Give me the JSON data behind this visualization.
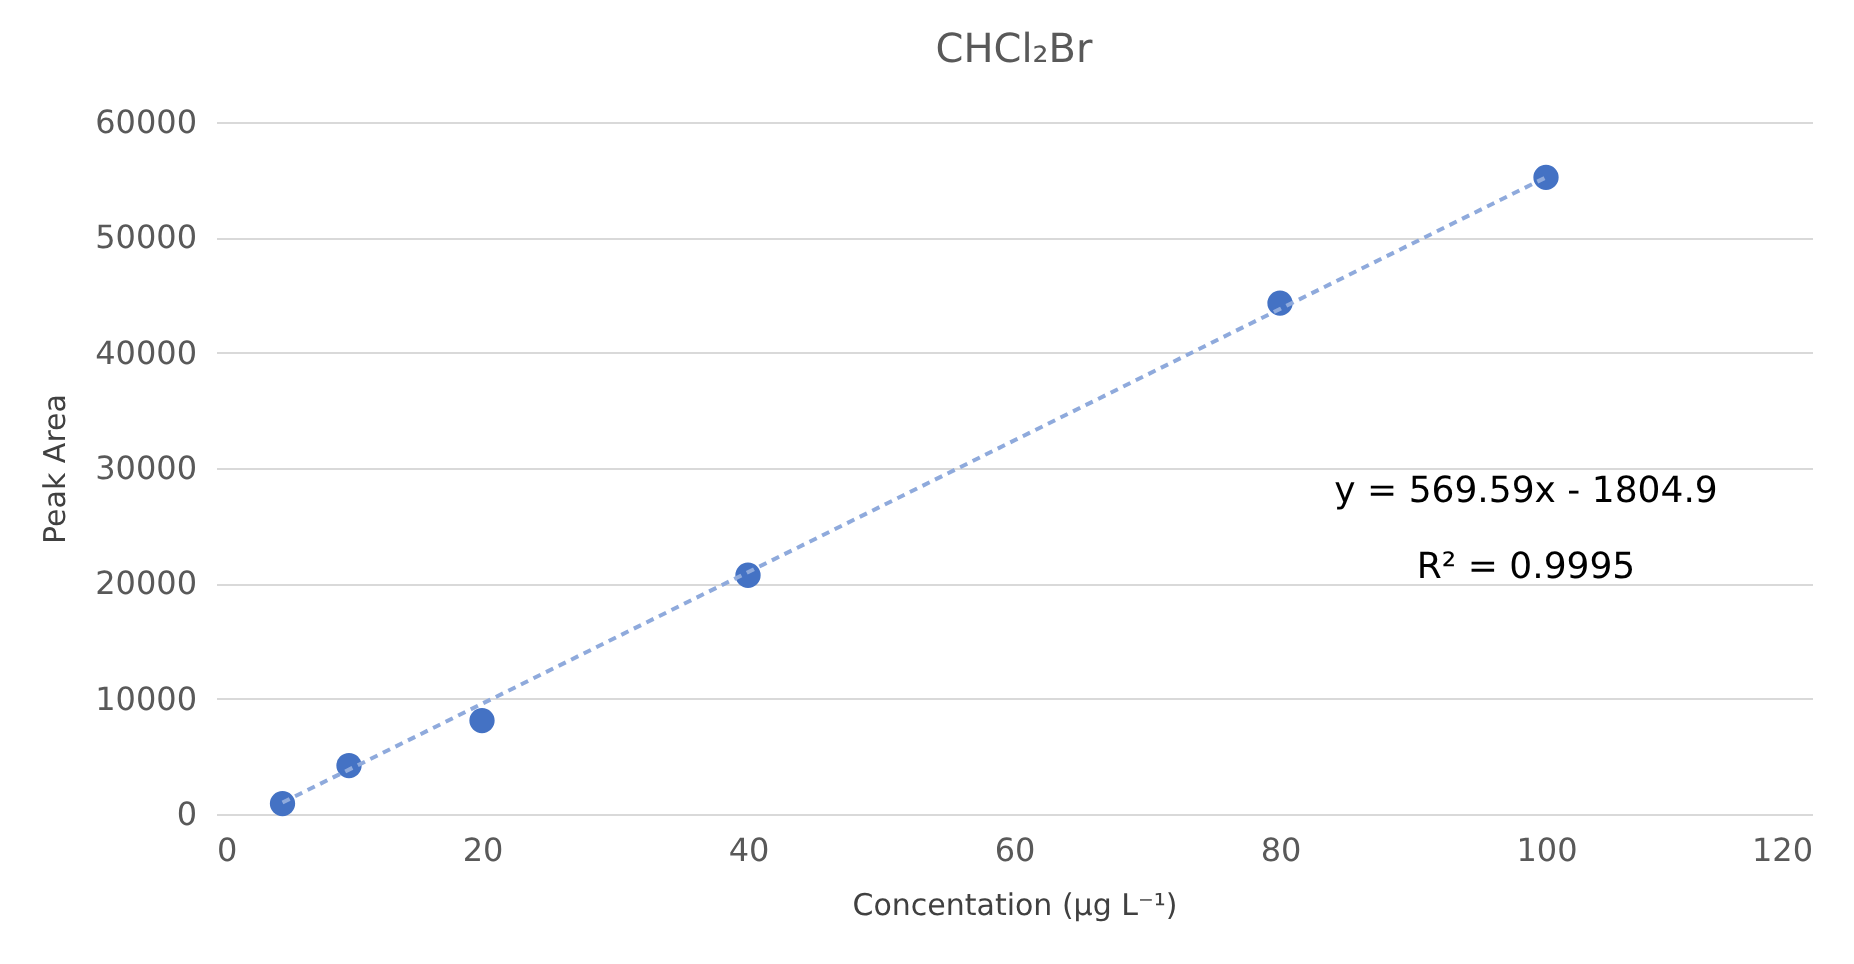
{
  "chart_data": {
    "type": "scatter",
    "title": "CHCl₂Br",
    "xlabel": "Concentation (μg L⁻¹)",
    "ylabel": "Peak Area",
    "marker": "circle",
    "series": [
      {
        "color": "#4472c4",
        "x": [
          5,
          10,
          20,
          40,
          80,
          100
        ],
        "values": [
          900,
          4200,
          8100,
          20700,
          44300,
          55200
        ]
      },
      {
        "type": "line",
        "color": "#8faadc",
        "x": [
          5,
          100
        ],
        "values": [
          1000,
          55200
        ],
        "line_style": "dashed",
        "marker": "none"
      }
    ],
    "annotations": [
      "y = 569.59x - 1804.9",
      "R² = 0.9995"
    ],
    "xlim": [
      0,
      120
    ],
    "xticks": [
      0,
      20,
      40,
      60,
      80,
      100,
      120
    ],
    "ylim": [
      0,
      60000
    ],
    "yticks": [
      0,
      10000,
      20000,
      30000,
      40000,
      50000,
      60000
    ],
    "grid": "y",
    "legend": false
  }
}
